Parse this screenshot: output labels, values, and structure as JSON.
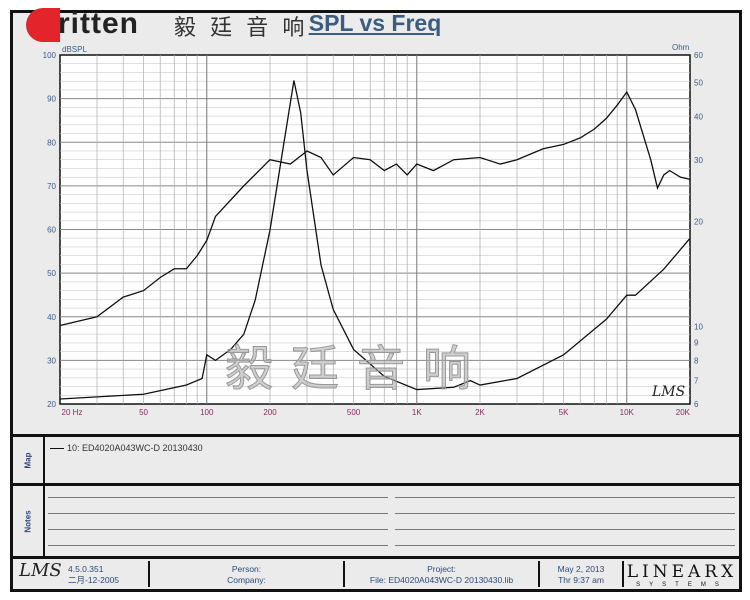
{
  "logo": {
    "word": "ritten",
    "chinese": "毅 廷 音 响"
  },
  "watermark": "毅廷音响",
  "chart_data": {
    "type": "line",
    "title": "SPL vs Freq",
    "xscale": "log",
    "xlim": [
      20,
      20000
    ],
    "ylim": [
      20,
      100
    ],
    "y2lim": [
      6,
      60
    ],
    "y2scale": "log",
    "ylabel": "dBSPL",
    "y2label": "Ohm",
    "xticks": [
      {
        "v": 20,
        "l": "20 Hz"
      },
      {
        "v": 50,
        "l": "50"
      },
      {
        "v": 100,
        "l": "100"
      },
      {
        "v": 200,
        "l": "200"
      },
      {
        "v": 500,
        "l": "500"
      },
      {
        "v": 1000,
        "l": "1K"
      },
      {
        "v": 2000,
        "l": "2K"
      },
      {
        "v": 5000,
        "l": "5K"
      },
      {
        "v": 10000,
        "l": "10K"
      },
      {
        "v": 20000,
        "l": "20K"
      }
    ],
    "yticks": [
      100,
      90,
      80,
      70,
      60,
      50,
      40,
      30,
      20
    ],
    "y2ticks": [
      60,
      50,
      40,
      30,
      20,
      10,
      9,
      8,
      7,
      6
    ],
    "grid": true,
    "annotation": "LMS",
    "series": [
      {
        "axis": "left",
        "x": [
          20,
          30,
          40,
          50,
          60,
          70,
          80,
          90,
          100,
          110,
          150,
          200,
          250,
          300,
          350,
          400,
          500,
          600,
          700,
          800,
          900,
          1000,
          1200,
          1500,
          2000,
          2500,
          3000,
          4000,
          5000,
          6000,
          7000,
          8000,
          9000,
          10000,
          11000,
          12000,
          13000,
          14000,
          15000,
          16000,
          18000,
          20000
        ],
        "y": [
          38,
          40,
          44.5,
          46,
          49,
          51,
          51,
          54,
          57.5,
          63,
          70,
          76,
          75,
          78,
          76.5,
          72.5,
          76.5,
          76,
          73.5,
          75,
          72.5,
          75,
          73.5,
          76,
          76.5,
          75,
          76,
          78.5,
          79.5,
          81,
          83,
          85.5,
          88.5,
          91.5,
          87.5,
          81.5,
          76,
          69.5,
          72.5,
          73.5,
          72,
          71.5
        ]
      },
      {
        "axis": "right",
        "x": [
          20,
          50,
          80,
          95,
          100,
          110,
          130,
          150,
          170,
          200,
          230,
          260,
          280,
          300,
          350,
          400,
          500,
          700,
          1000,
          1500,
          1800,
          2000,
          3000,
          5000,
          8000,
          10000,
          11000,
          15000,
          20000
        ],
        "y": [
          6.2,
          6.4,
          6.8,
          7.1,
          8.3,
          8.0,
          8.6,
          9.5,
          11.9,
          18.9,
          32,
          50.7,
          41,
          28,
          15,
          11.2,
          8.6,
          7.2,
          6.6,
          6.7,
          7.0,
          6.8,
          7.1,
          8.3,
          10.5,
          12.3,
          12.3,
          14.6,
          17.9
        ]
      }
    ],
    "colors": {
      "curve": "#111111",
      "left_ticks": "#3b5c8a",
      "x_ticks": "#8b2a5a",
      "title": "#3b5c7e"
    }
  },
  "map": {
    "label": "Map",
    "entry": "10: ED4020A043WC-D   20130430"
  },
  "notes": {
    "label": "Notes"
  },
  "footer": {
    "lms_logo": "LMS",
    "version": "4.5.0.351",
    "build_date": "二月-12-2005",
    "person": "Person:",
    "company": "Company:",
    "project": "Project:",
    "file": "File: ED4020A043WC-D  20130430.lib",
    "date": "May  2, 2013",
    "time": "Thr  9:37 am",
    "brand": "LINEARX",
    "brand_sub": "SYSTEMS"
  }
}
